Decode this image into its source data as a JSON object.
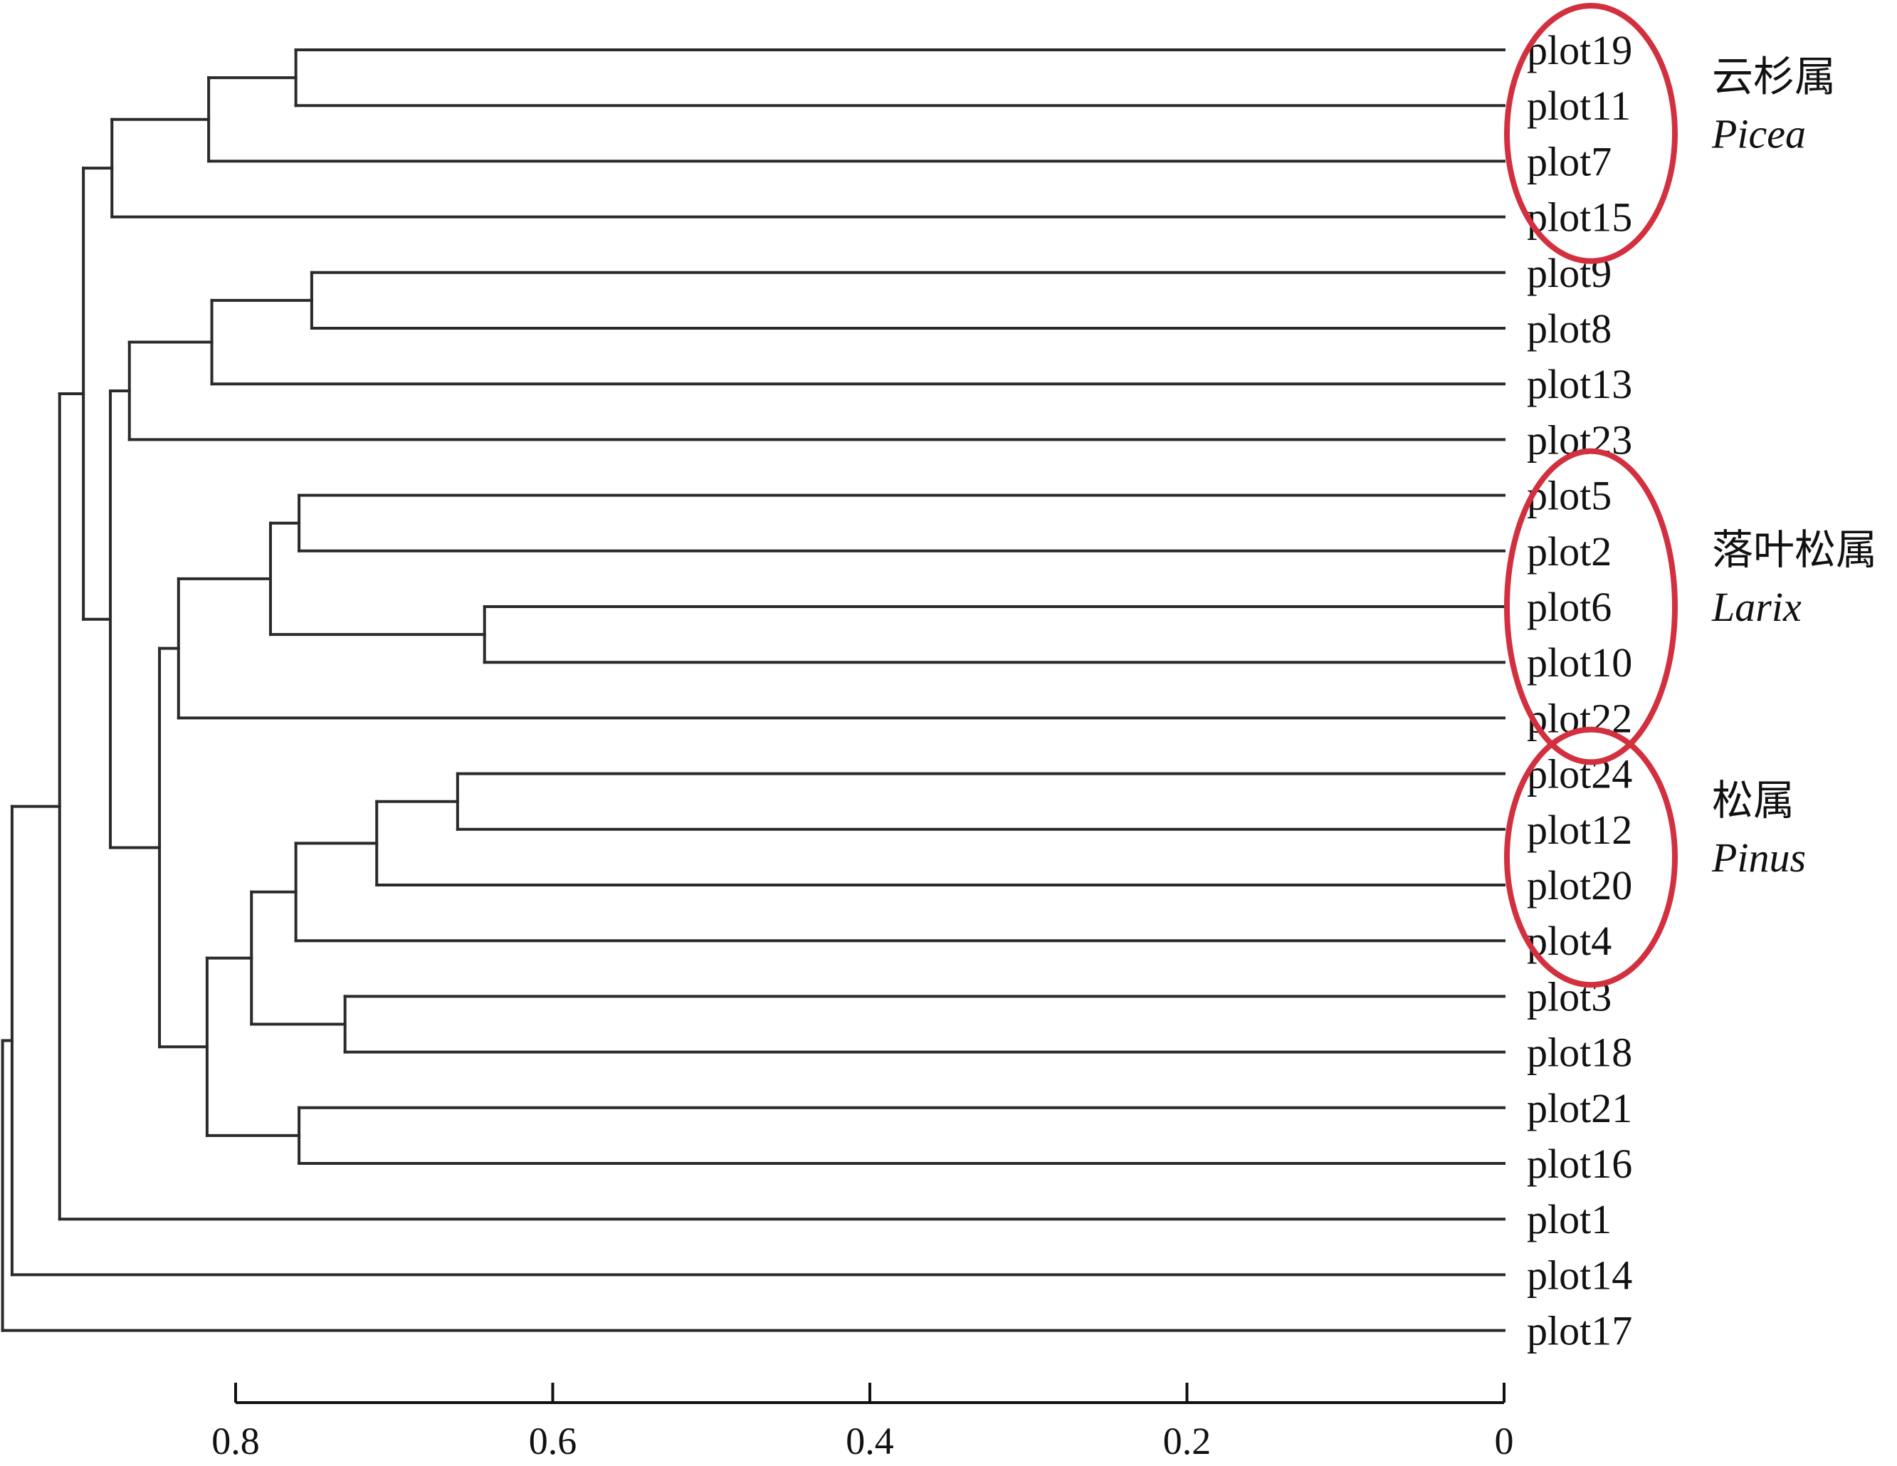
{
  "chart_data": {
    "type": "dendrogram",
    "x_axis": {
      "reversed": true,
      "range": [
        0,
        0.8
      ],
      "ticks": [
        0.8,
        0.6,
        0.4,
        0.2,
        0
      ],
      "tick_labels": [
        "0.8",
        "0.6",
        "0.4",
        "0.2",
        "0"
      ]
    },
    "leaves": [
      "plot19",
      "plot11",
      "plot7",
      "plot15",
      "plot9",
      "plot8",
      "plot13",
      "plot23",
      "plot5",
      "plot2",
      "plot6",
      "plot10",
      "plot22",
      "plot24",
      "plot12",
      "plot20",
      "plot4",
      "plot3",
      "plot18",
      "plot21",
      "plot16",
      "plot1",
      "plot14",
      "plot17"
    ],
    "merges": [
      {
        "id": "n1",
        "children": [
          "plot19",
          "plot11"
        ],
        "height": 0.762
      },
      {
        "id": "n2",
        "children": [
          "n1",
          "plot7"
        ],
        "height": 0.817
      },
      {
        "id": "n3",
        "children": [
          "n2",
          "plot15"
        ],
        "height": 0.878
      },
      {
        "id": "n4",
        "children": [
          "plot9",
          "plot8"
        ],
        "height": 0.752
      },
      {
        "id": "n5",
        "children": [
          "n4",
          "plot13"
        ],
        "height": 0.815
      },
      {
        "id": "n6",
        "children": [
          "n5",
          "plot23"
        ],
        "height": 0.867
      },
      {
        "id": "n7",
        "children": [
          "plot5",
          "plot2"
        ],
        "height": 0.76
      },
      {
        "id": "n8",
        "children": [
          "plot6",
          "plot10"
        ],
        "height": 0.643
      },
      {
        "id": "n9",
        "children": [
          "n7",
          "n8"
        ],
        "height": 0.778
      },
      {
        "id": "n10",
        "children": [
          "n9",
          "plot22"
        ],
        "height": 0.836
      },
      {
        "id": "n11",
        "children": [
          "plot24",
          "plot12"
        ],
        "height": 0.66
      },
      {
        "id": "n12",
        "children": [
          "n11",
          "plot20"
        ],
        "height": 0.711
      },
      {
        "id": "n13",
        "children": [
          "n12",
          "plot4"
        ],
        "height": 0.762
      },
      {
        "id": "n14",
        "children": [
          "plot3",
          "plot18"
        ],
        "height": 0.731
      },
      {
        "id": "n15",
        "children": [
          "n13",
          "n14"
        ],
        "height": 0.79
      },
      {
        "id": "n16",
        "children": [
          "plot21",
          "plot16"
        ],
        "height": 0.76
      },
      {
        "id": "n17",
        "children": [
          "n15",
          "n16"
        ],
        "height": 0.818
      },
      {
        "id": "n18",
        "children": [
          "n10",
          "n17"
        ],
        "height": 0.848
      },
      {
        "id": "n19",
        "children": [
          "n6",
          "n18"
        ],
        "height": 0.879
      },
      {
        "id": "n20",
        "children": [
          "n3",
          "n19"
        ],
        "height": 0.896
      },
      {
        "id": "n21",
        "children": [
          "n20",
          "plot1"
        ],
        "height": 0.911
      },
      {
        "id": "n22",
        "children": [
          "n21",
          "plot14"
        ],
        "height": 0.941
      },
      {
        "id": "n23",
        "children": [
          "n22",
          "plot17"
        ],
        "height": 0.947
      }
    ],
    "annotations": [
      {
        "name_zh": "云杉属",
        "name_latin": "Picea",
        "leaves": [
          "plot19",
          "plot11",
          "plot7",
          "plot15"
        ]
      },
      {
        "name_zh": "落叶松属",
        "name_latin": "Larix",
        "leaves": [
          "plot5",
          "plot2",
          "plot6",
          "plot10",
          "plot22"
        ]
      },
      {
        "name_zh": "松属",
        "name_latin": "Pinus",
        "leaves": [
          "plot24",
          "plot12",
          "plot20",
          "plot4"
        ]
      }
    ],
    "colors": {
      "branch": "#2a2a2a",
      "text": "#111111",
      "highlight": "#d3303f"
    }
  }
}
